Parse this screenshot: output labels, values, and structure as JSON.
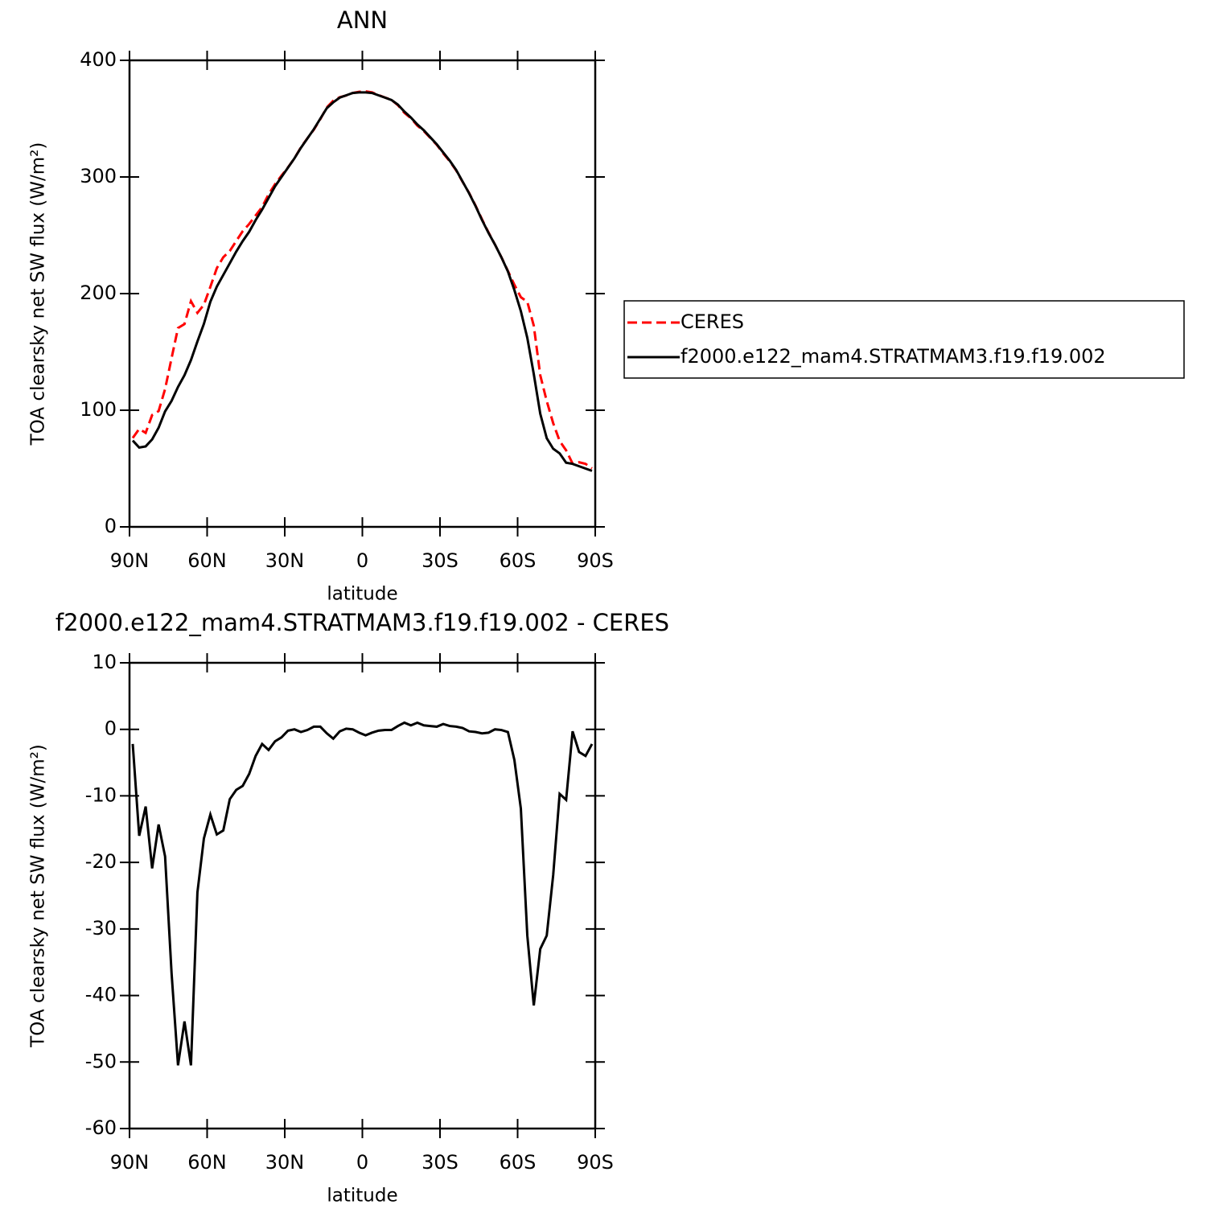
{
  "chart_data": [
    {
      "type": "line",
      "title": "ANN",
      "xlabel": "latitude",
      "ylabel": "TOA clearsky net SW flux (W/m²)",
      "x": [
        88.75,
        86.25,
        83.75,
        81.25,
        78.75,
        76.25,
        73.75,
        71.25,
        68.75,
        66.25,
        63.75,
        61.25,
        58.75,
        56.25,
        53.75,
        51.25,
        48.75,
        46.25,
        43.75,
        41.25,
        38.75,
        36.25,
        33.75,
        31.25,
        28.75,
        26.25,
        23.75,
        21.25,
        18.75,
        16.25,
        13.75,
        11.25,
        8.75,
        6.25,
        3.75,
        1.25,
        -1.25,
        -3.75,
        -6.25,
        -8.75,
        -11.25,
        -13.75,
        -16.25,
        -18.75,
        -21.25,
        -23.75,
        -26.25,
        -28.75,
        -31.25,
        -33.75,
        -36.25,
        -38.75,
        -41.25,
        -43.75,
        -46.25,
        -48.75,
        -51.25,
        -53.75,
        -56.25,
        -58.75,
        -61.25,
        -63.75,
        -66.25,
        -68.75,
        -71.25,
        -73.75,
        -76.25,
        -78.75,
        -81.25,
        -83.75,
        -86.25,
        -88.75
      ],
      "series": [
        {
          "name": "CERES",
          "color": "#ff0000",
          "linestyle": "dashed",
          "values": [
            76.2,
            84,
            80.6,
            95.9,
            99.3,
            118.1,
            144.6,
            170.5,
            173.9,
            193.5,
            183.5,
            190.4,
            205.8,
            221.8,
            231.2,
            236.5,
            245.1,
            253.5,
            259.7,
            267,
            274.2,
            285.1,
            293.8,
            301.2,
            308.2,
            316,
            325.4,
            333.1,
            340.6,
            349.6,
            359.6,
            365.4,
            368.3,
            369.9,
            372,
            373,
            373.4,
            372.5,
            370.2,
            368.1,
            366.1,
            361.5,
            355,
            350.4,
            344,
            339.4,
            333.5,
            327.6,
            320.2,
            313.5,
            305.6,
            295.8,
            286.3,
            275.4,
            263.6,
            252.5,
            242,
            231.1,
            219.4,
            207.6,
            196.9,
            193,
            172.5,
            130,
            107.9,
            88.9,
            73.6,
            65.6,
            54.3,
            55.4,
            54,
            50.2
          ]
        },
        {
          "name": "f2000.e122_mam4.STRATMAM3.f19.f19.002",
          "color": "#000000",
          "linestyle": "solid",
          "values": [
            74,
            68,
            69,
            75,
            85,
            99,
            108,
            120,
            130,
            143,
            159,
            174,
            193,
            206,
            216,
            226,
            236,
            245,
            253,
            263,
            272,
            282,
            292,
            300,
            308,
            316,
            325,
            333,
            341,
            350,
            359,
            364,
            368,
            370,
            372,
            372.5,
            372.5,
            372,
            370,
            368,
            366,
            362,
            356,
            351,
            345,
            340,
            334,
            328,
            321,
            314,
            306,
            296,
            286,
            275,
            263,
            252,
            242,
            231,
            219,
            203,
            185,
            162,
            131,
            97,
            76,
            67,
            63,
            55,
            54,
            52,
            50,
            48
          ]
        }
      ],
      "xlim": [
        90,
        -90
      ],
      "xticks": [
        {
          "value": 90,
          "label": "90N"
        },
        {
          "value": 60,
          "label": "60N"
        },
        {
          "value": 30,
          "label": "30N"
        },
        0,
        {
          "value": -30,
          "label": "30S"
        },
        {
          "value": -60,
          "label": "60S"
        },
        {
          "value": -90,
          "label": "90S"
        }
      ],
      "ylim": [
        0,
        400
      ],
      "yticks": [
        0,
        100,
        200,
        300,
        400
      ],
      "legend": "right"
    },
    {
      "type": "line",
      "title": "f2000.e122_mam4.STRATMAM3.f19.f19.002 - CERES",
      "xlabel": "latitude",
      "ylabel": "TOA clearsky net SW flux (W/m²)",
      "x": [
        88.75,
        86.25,
        83.75,
        81.25,
        78.75,
        76.25,
        73.75,
        71.25,
        68.75,
        66.25,
        63.75,
        61.25,
        58.75,
        56.25,
        53.75,
        51.25,
        48.75,
        46.25,
        43.75,
        41.25,
        38.75,
        36.25,
        33.75,
        31.25,
        28.75,
        26.25,
        23.75,
        21.25,
        18.75,
        16.25,
        13.75,
        11.25,
        8.75,
        6.25,
        3.75,
        1.25,
        -1.25,
        -3.75,
        -6.25,
        -8.75,
        -11.25,
        -13.75,
        -16.25,
        -18.75,
        -21.25,
        -23.75,
        -26.25,
        -28.75,
        -31.25,
        -33.75,
        -36.25,
        -38.75,
        -41.25,
        -43.75,
        -46.25,
        -48.75,
        -51.25,
        -53.75,
        -56.25,
        -58.75,
        -61.25,
        -63.75,
        -66.25,
        -68.75,
        -71.25,
        -73.75,
        -76.25,
        -78.75,
        -81.25,
        -83.75,
        -86.25,
        -88.75
      ],
      "series": [
        {
          "color": "#000000",
          "linestyle": "solid",
          "values": [
            -2.2,
            -16,
            -11.6,
            -20.9,
            -14.3,
            -19.1,
            -36.6,
            -50.5,
            -43.9,
            -50.5,
            -24.5,
            -16.4,
            -12.8,
            -15.8,
            -15.2,
            -10.5,
            -9.1,
            -8.5,
            -6.7,
            -4,
            -2.2,
            -3.1,
            -1.8,
            -1.2,
            -0.2,
            0,
            -0.4,
            -0.1,
            0.4,
            0.4,
            -0.6,
            -1.4,
            -0.3,
            0.1,
            0,
            -0.5,
            -0.9,
            -0.5,
            -0.2,
            -0.1,
            -0.1,
            0.5,
            1,
            0.6,
            1,
            0.6,
            0.5,
            0.4,
            0.8,
            0.5,
            0.4,
            0.2,
            -0.3,
            -0.4,
            -0.6,
            -0.5,
            0,
            -0.1,
            -0.4,
            -4.6,
            -11.9,
            -31,
            -41.5,
            -33,
            -31,
            -21.9,
            -9.7,
            -10.6,
            -0.3,
            -3.4,
            -4,
            -2.2
          ]
        }
      ],
      "xlim": [
        90,
        -90
      ],
      "xticks": [
        {
          "value": 90,
          "label": "90N"
        },
        {
          "value": 60,
          "label": "60N"
        },
        {
          "value": 30,
          "label": "30N"
        },
        0,
        {
          "value": -30,
          "label": "30S"
        },
        {
          "value": -60,
          "label": "60S"
        },
        {
          "value": -90,
          "label": "90S"
        }
      ],
      "ylim": [
        -60,
        10
      ],
      "yticks": [
        -60,
        -50,
        -40,
        -30,
        -20,
        -10,
        0,
        10
      ]
    }
  ]
}
